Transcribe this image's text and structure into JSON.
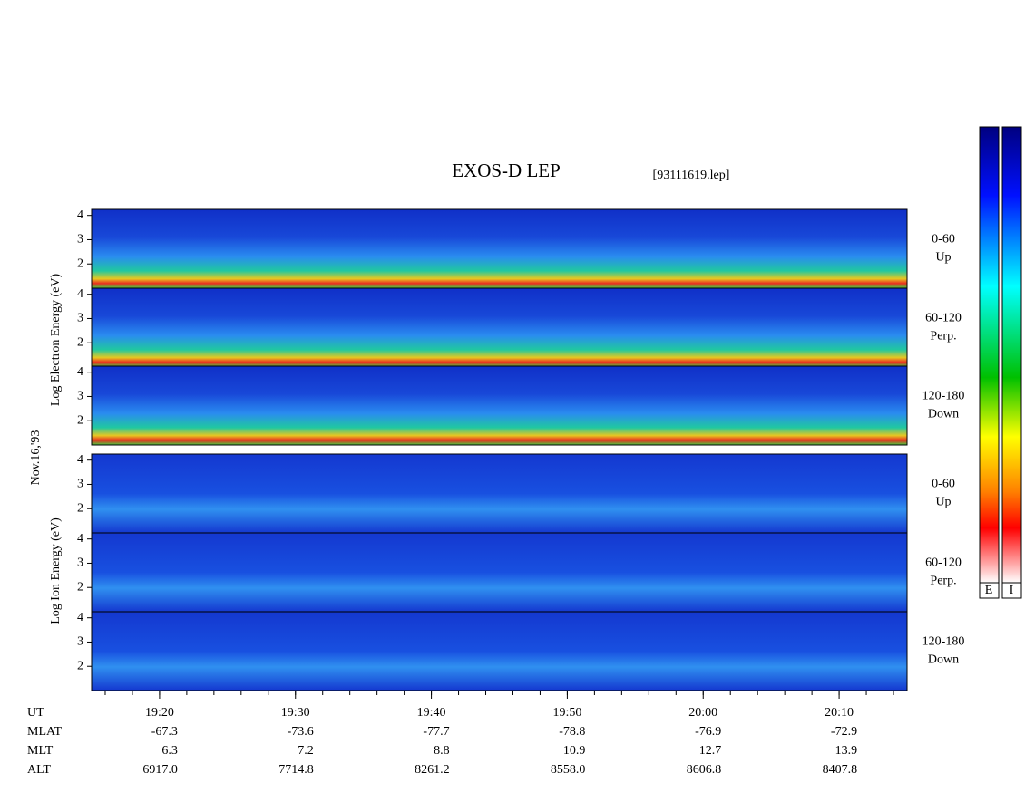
{
  "header": {
    "title": "EXOS-D LEP",
    "file": "[93111619.lep]"
  },
  "axis_labels": {
    "electron": "Log Electron Energy (eV)",
    "ion": "Log Ion Energy (eV)",
    "date": "Nov.16,'93"
  },
  "panels": [
    {
      "group": "electron",
      "ylim": [
        1,
        4.25
      ],
      "yticks": [
        2,
        3,
        4
      ],
      "angle": "0-60",
      "direction": "Up"
    },
    {
      "group": "electron",
      "ylim": [
        1,
        4.25
      ],
      "yticks": [
        2,
        3,
        4
      ],
      "angle": "60-120",
      "direction": "Perp."
    },
    {
      "group": "electron",
      "ylim": [
        1,
        4.25
      ],
      "yticks": [
        2,
        3,
        4
      ],
      "angle": "120-180",
      "direction": "Down"
    },
    {
      "group": "ion",
      "ylim": [
        1,
        4.25
      ],
      "yticks": [
        2,
        3,
        4
      ],
      "angle": "0-60",
      "direction": "Up"
    },
    {
      "group": "ion",
      "ylim": [
        1,
        4.25
      ],
      "yticks": [
        2,
        3,
        4
      ],
      "angle": "60-120",
      "direction": "Perp."
    },
    {
      "group": "ion",
      "ylim": [
        1,
        4.25
      ],
      "yticks": [
        2,
        3,
        4
      ],
      "angle": "120-180",
      "direction": "Down"
    }
  ],
  "time_axis": {
    "xlim": [
      "19:15",
      "20:15"
    ],
    "ticks": [
      "19:20",
      "19:30",
      "19:40",
      "19:50",
      "20:00",
      "20:10"
    ]
  },
  "rows": [
    {
      "label": "UT"
    },
    {
      "label": "MLAT",
      "values": [
        "-67.3",
        "-73.6",
        "-77.7",
        "-78.8",
        "-76.9",
        "-72.9"
      ]
    },
    {
      "label": "MLT",
      "values": [
        "6.3",
        "7.2",
        "8.8",
        "10.9",
        "12.7",
        "13.9"
      ]
    },
    {
      "label": "ALT",
      "values": [
        "6917.0",
        "7714.8",
        "8261.2",
        "8558.0",
        "8606.8",
        "8407.8"
      ]
    }
  ],
  "colorbar": {
    "labels": [
      "E",
      "I"
    ]
  }
}
